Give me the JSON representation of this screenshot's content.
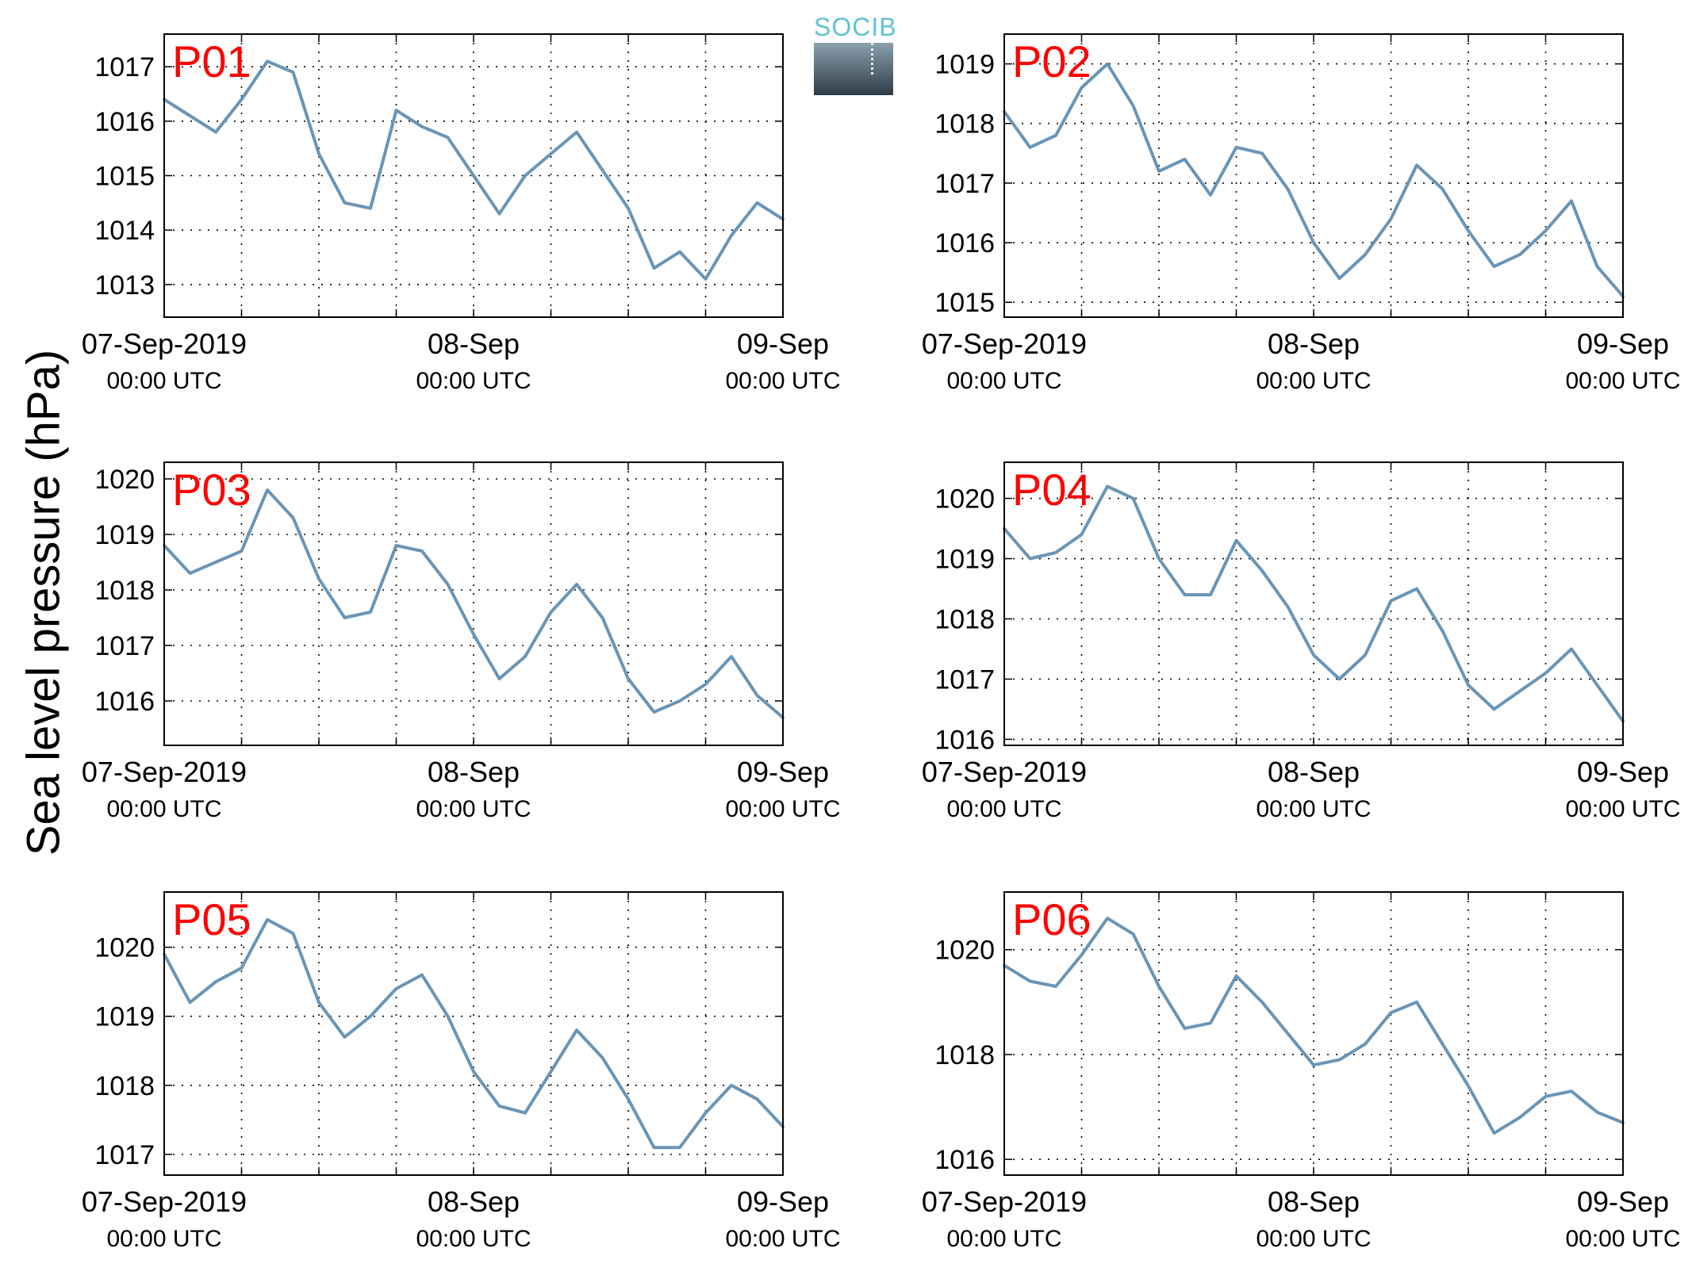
{
  "ylabel": "Sea level pressure (hPa)",
  "logo": {
    "text": "SOCIB"
  },
  "colors": {
    "line": "#6a95b6",
    "panel_label": "#ff0000",
    "axis": "#000000",
    "grid": "#000000"
  },
  "chart_data": [
    {
      "type": "line",
      "title": "P01",
      "xlabel": "",
      "ylabel": "",
      "xlim": [
        "2019-09-07 00:00",
        "2019-09-09 00:00"
      ],
      "xticks": [
        {
          "line1": "07-Sep-2019",
          "line2": "00:00 UTC"
        },
        {
          "line1": "08-Sep",
          "line2": "00:00 UTC"
        },
        {
          "line1": "09-Sep",
          "line2": "00:00 UTC"
        }
      ],
      "ylim": [
        1012.4,
        1017.6
      ],
      "yticks": [
        1013,
        1014,
        1015,
        1016,
        1017
      ],
      "grid": true,
      "x_hours": [
        0,
        2,
        4,
        6,
        8,
        10,
        12,
        14,
        16,
        18,
        20,
        22,
        24,
        26,
        28,
        30,
        32,
        34,
        36,
        38,
        40,
        42,
        44,
        46,
        48
      ],
      "series": [
        {
          "values": [
            1016.4,
            1016.1,
            1015.8,
            1016.4,
            1017.1,
            1016.9,
            1015.4,
            1014.5,
            1014.4,
            1016.2,
            1015.9,
            1015.7,
            1015.0,
            1014.3,
            1015.0,
            1015.4,
            1015.8,
            1015.1,
            1014.4,
            1013.3,
            1013.6,
            1013.1,
            1013.9,
            1014.5,
            1014.2
          ]
        }
      ]
    },
    {
      "type": "line",
      "title": "P02",
      "xlabel": "",
      "ylabel": "",
      "xlim": [
        "2019-09-07 00:00",
        "2019-09-09 00:00"
      ],
      "xticks": [
        {
          "line1": "07-Sep-2019",
          "line2": "00:00 UTC"
        },
        {
          "line1": "08-Sep",
          "line2": "00:00 UTC"
        },
        {
          "line1": "09-Sep",
          "line2": "00:00 UTC"
        }
      ],
      "ylim": [
        1014.75,
        1019.5
      ],
      "yticks": [
        1015,
        1016,
        1017,
        1018,
        1019
      ],
      "grid": true,
      "x_hours": [
        0,
        2,
        4,
        6,
        8,
        10,
        12,
        14,
        16,
        18,
        20,
        22,
        24,
        26,
        28,
        30,
        32,
        34,
        36,
        38,
        40,
        42,
        44,
        46,
        48
      ],
      "series": [
        {
          "values": [
            1018.2,
            1017.6,
            1017.8,
            1018.6,
            1019.0,
            1018.3,
            1017.2,
            1017.4,
            1016.8,
            1017.6,
            1017.5,
            1016.9,
            1016.0,
            1015.4,
            1015.8,
            1016.4,
            1017.3,
            1016.9,
            1016.2,
            1015.6,
            1015.8,
            1016.2,
            1016.7,
            1015.6,
            1015.1
          ]
        }
      ]
    },
    {
      "type": "line",
      "title": "P03",
      "xlabel": "",
      "ylabel": "",
      "xlim": [
        "2019-09-07 00:00",
        "2019-09-09 00:00"
      ],
      "xticks": [
        {
          "line1": "07-Sep-2019",
          "line2": "00:00 UTC"
        },
        {
          "line1": "08-Sep",
          "line2": "00:00 UTC"
        },
        {
          "line1": "09-Sep",
          "line2": "00:00 UTC"
        }
      ],
      "ylim": [
        1015.2,
        1020.3
      ],
      "yticks": [
        1016,
        1017,
        1018,
        1019,
        1020
      ],
      "grid": true,
      "x_hours": [
        0,
        2,
        4,
        6,
        8,
        10,
        12,
        14,
        16,
        18,
        20,
        22,
        24,
        26,
        28,
        30,
        32,
        34,
        36,
        38,
        40,
        42,
        44,
        46,
        48
      ],
      "series": [
        {
          "values": [
            1018.8,
            1018.3,
            1018.5,
            1018.7,
            1019.8,
            1019.3,
            1018.2,
            1017.5,
            1017.6,
            1018.8,
            1018.7,
            1018.1,
            1017.2,
            1016.4,
            1016.8,
            1017.6,
            1018.1,
            1017.5,
            1016.4,
            1015.8,
            1016.0,
            1016.3,
            1016.8,
            1016.1,
            1015.7
          ]
        }
      ]
    },
    {
      "type": "line",
      "title": "P04",
      "xlabel": "",
      "ylabel": "",
      "xlim": [
        "2019-09-07 00:00",
        "2019-09-09 00:00"
      ],
      "xticks": [
        {
          "line1": "07-Sep-2019",
          "line2": "00:00 UTC"
        },
        {
          "line1": "08-Sep",
          "line2": "00:00 UTC"
        },
        {
          "line1": "09-Sep",
          "line2": "00:00 UTC"
        }
      ],
      "ylim": [
        1015.9,
        1020.6
      ],
      "yticks": [
        1016,
        1017,
        1018,
        1019,
        1020
      ],
      "grid": true,
      "x_hours": [
        0,
        2,
        4,
        6,
        8,
        10,
        12,
        14,
        16,
        18,
        20,
        22,
        24,
        26,
        28,
        30,
        32,
        34,
        36,
        38,
        40,
        42,
        44,
        46,
        48
      ],
      "series": [
        {
          "values": [
            1019.5,
            1019.0,
            1019.1,
            1019.4,
            1020.2,
            1020.0,
            1019.0,
            1018.4,
            1018.4,
            1019.3,
            1018.8,
            1018.2,
            1017.4,
            1017.0,
            1017.4,
            1018.3,
            1018.5,
            1017.8,
            1016.9,
            1016.5,
            1016.8,
            1017.1,
            1017.5,
            1016.9,
            1016.3
          ]
        }
      ]
    },
    {
      "type": "line",
      "title": "P05",
      "xlabel": "",
      "ylabel": "",
      "xlim": [
        "2019-09-07 00:00",
        "2019-09-09 00:00"
      ],
      "xticks": [
        {
          "line1": "07-Sep-2019",
          "line2": "00:00 UTC"
        },
        {
          "line1": "08-Sep",
          "line2": "00:00 UTC"
        },
        {
          "line1": "09-Sep",
          "line2": "00:00 UTC"
        }
      ],
      "ylim": [
        1016.7,
        1020.8
      ],
      "yticks": [
        1017,
        1018,
        1019,
        1020
      ],
      "grid": true,
      "x_hours": [
        0,
        2,
        4,
        6,
        8,
        10,
        12,
        14,
        16,
        18,
        20,
        22,
        24,
        26,
        28,
        30,
        32,
        34,
        36,
        38,
        40,
        42,
        44,
        46,
        48
      ],
      "series": [
        {
          "values": [
            1019.9,
            1019.2,
            1019.5,
            1019.7,
            1020.4,
            1020.2,
            1019.2,
            1018.7,
            1019.0,
            1019.4,
            1019.6,
            1019.0,
            1018.2,
            1017.7,
            1017.6,
            1018.2,
            1018.8,
            1018.4,
            1017.8,
            1017.1,
            1017.1,
            1017.6,
            1018.0,
            1017.8,
            1017.4
          ]
        }
      ]
    },
    {
      "type": "line",
      "title": "P06",
      "xlabel": "",
      "ylabel": "",
      "xlim": [
        "2019-09-07 00:00",
        "2019-09-09 00:00"
      ],
      "xticks": [
        {
          "line1": "07-Sep-2019",
          "line2": "00:00 UTC"
        },
        {
          "line1": "08-Sep",
          "line2": "00:00 UTC"
        },
        {
          "line1": "09-Sep",
          "line2": "00:00 UTC"
        }
      ],
      "ylim": [
        1015.7,
        1021.1
      ],
      "yticks": [
        1016,
        1018,
        1020
      ],
      "grid": true,
      "x_hours": [
        0,
        2,
        4,
        6,
        8,
        10,
        12,
        14,
        16,
        18,
        20,
        22,
        24,
        26,
        28,
        30,
        32,
        34,
        36,
        38,
        40,
        42,
        44,
        46,
        48
      ],
      "series": [
        {
          "values": [
            1019.7,
            1019.4,
            1019.3,
            1019.9,
            1020.6,
            1020.3,
            1019.3,
            1018.5,
            1018.6,
            1019.5,
            1019.0,
            1018.4,
            1017.8,
            1017.9,
            1018.2,
            1018.8,
            1019.0,
            1018.2,
            1017.4,
            1016.5,
            1016.8,
            1017.2,
            1017.3,
            1016.9,
            1016.7
          ]
        }
      ]
    }
  ]
}
